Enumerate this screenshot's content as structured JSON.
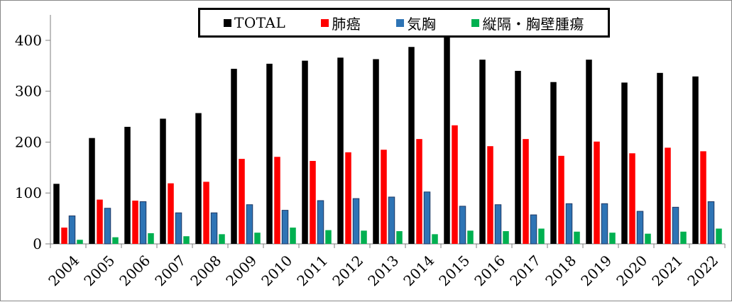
{
  "chart_data": {
    "type": "bar",
    "title": "",
    "xlabel": "",
    "ylabel": "",
    "ylim": [
      0,
      450
    ],
    "yticks": [
      0,
      100,
      200,
      300,
      400
    ],
    "grid": false,
    "legend_position": "top",
    "categories": [
      "2004",
      "2005",
      "2006",
      "2007",
      "2008",
      "2009",
      "2010",
      "2011",
      "2012",
      "2013",
      "2014",
      "2015",
      "2016",
      "2017",
      "2018",
      "2019",
      "2020",
      "2021",
      "2022"
    ],
    "series": [
      {
        "name": "TOTAL",
        "color": "#000000",
        "values": [
          118,
          208,
          230,
          246,
          257,
          344,
          354,
          360,
          366,
          363,
          387,
          410,
          362,
          340,
          318,
          362,
          317,
          336,
          329
        ]
      },
      {
        "name": "肺癌",
        "color": "#ff0000",
        "values": [
          32,
          87,
          85,
          119,
          122,
          167,
          171,
          163,
          180,
          185,
          206,
          233,
          192,
          206,
          173,
          201,
          178,
          189,
          182
        ]
      },
      {
        "name": "気胸",
        "color": "#2e74b5",
        "values": [
          55,
          70,
          83,
          61,
          61,
          77,
          66,
          85,
          89,
          92,
          102,
          74,
          77,
          57,
          79,
          79,
          64,
          72,
          83
        ]
      },
      {
        "name": "縦隔・胸壁腫瘍",
        "color": "#00b050",
        "values": [
          8,
          13,
          21,
          15,
          19,
          22,
          32,
          27,
          26,
          25,
          19,
          26,
          25,
          30,
          24,
          22,
          20,
          24,
          30
        ]
      }
    ]
  }
}
